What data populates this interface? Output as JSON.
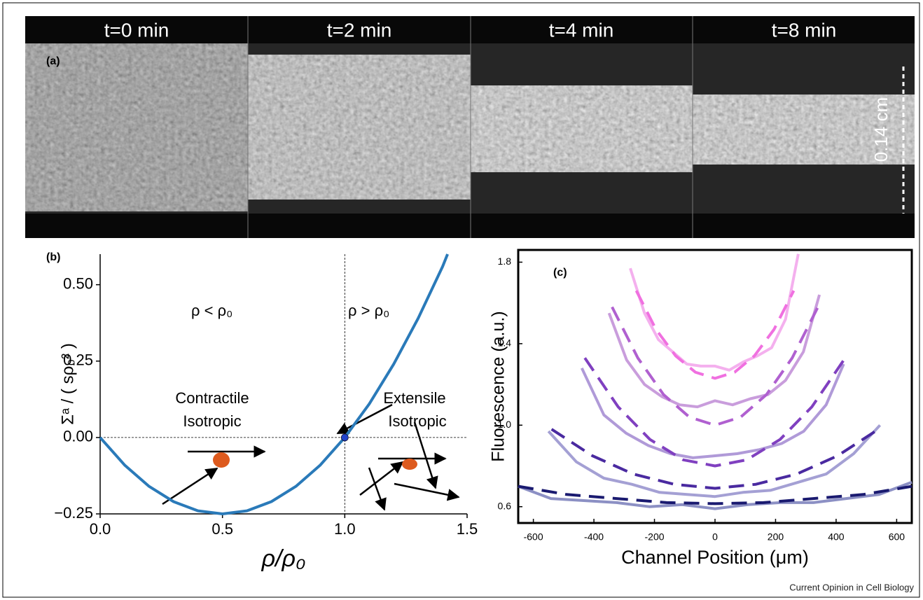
{
  "panel_a": {
    "label": "(a)",
    "frames": [
      "t=0 min",
      "t=2 min",
      "t=4 min",
      "t=8 min"
    ],
    "scale_bar": "0.14 cm"
  },
  "chart_data": [
    {
      "type": "line",
      "label": "(b)",
      "x_label": "ρ/ρ₀",
      "y_label": "Σᵃ / ( sρ₀² )",
      "x": [
        0,
        0.1,
        0.2,
        0.3,
        0.4,
        0.5,
        0.6,
        0.7,
        0.8,
        0.9,
        1.0,
        1.1,
        1.2,
        1.3,
        1.4,
        1.42
      ],
      "series": [
        {
          "color": "#2a7ab9",
          "values": [
            0,
            -0.09,
            -0.16,
            -0.21,
            -0.24,
            -0.25,
            -0.24,
            -0.21,
            -0.16,
            -0.09,
            0,
            0.11,
            0.24,
            0.39,
            0.56,
            0.6
          ]
        }
      ],
      "xlim": [
        0,
        1.5
      ],
      "xticks": [
        {
          "value": 0,
          "label": "0.0"
        },
        0.5,
        {
          "value": 1,
          "label": "1.0"
        },
        1.5
      ],
      "ylim": [
        -0.25,
        0.6
      ],
      "yticks": [
        {
          "value": -0.25,
          "label": "−0.25"
        },
        {
          "value": 0,
          "label": "0.00"
        },
        0.25,
        {
          "value": 0.5,
          "label": "0.50"
        }
      ],
      "reference_lines": {
        "x": 1,
        "y": 0
      },
      "point": {
        "x": 1,
        "y": 0,
        "color": "#2244cc"
      },
      "annotations": [
        "ρ < ρ₀",
        "ρ > ρ₀",
        "Contractile",
        "Isotropic",
        "Extensile",
        "Isotropic"
      ]
    },
    {
      "type": "line",
      "label": "(c)",
      "x_label": "Channel Position (μm)",
      "y_label": "Fluorescence (a.u.)",
      "xlim": [
        -650,
        650
      ],
      "xticks": [
        -600,
        -400,
        -200,
        0,
        200,
        400,
        600
      ],
      "ylim": [
        0.52,
        1.86
      ],
      "yticks": [
        0.6,
        {
          "value": 1,
          "label": "1.0"
        },
        1.4,
        1.8
      ],
      "series": [
        {
          "color": "#8c90c4",
          "dashed": false,
          "x": [
            -650,
            -542,
            -433,
            -325,
            -217,
            -108,
            0,
            108,
            217,
            325,
            433,
            542,
            650
          ],
          "values": [
            0.7,
            0.64,
            0.63,
            0.62,
            0.6,
            0.61,
            0.59,
            0.61,
            0.62,
            0.62,
            0.64,
            0.66,
            0.72
          ]
        },
        {
          "color": "#a4a0d4",
          "dashed": false,
          "x": [
            -550,
            -458,
            -367,
            -275,
            -183,
            -92,
            0,
            92,
            183,
            275,
            367,
            458,
            545
          ],
          "values": [
            0.97,
            0.82,
            0.74,
            0.71,
            0.67,
            0.66,
            0.65,
            0.67,
            0.68,
            0.72,
            0.76,
            0.86,
            1.0
          ]
        },
        {
          "color": "#b09ad8",
          "dashed": false,
          "x": [
            -440,
            -367,
            -293,
            -220,
            -147,
            -73,
            0,
            73,
            147,
            220,
            293,
            367,
            425
          ],
          "values": [
            1.28,
            1.05,
            0.96,
            0.9,
            0.86,
            0.84,
            0.85,
            0.86,
            0.88,
            0.91,
            0.97,
            1.1,
            1.3
          ]
        },
        {
          "color": "#c99ddc",
          "dashed": false,
          "x": [
            -350,
            -292,
            -233,
            -175,
            -117,
            -58,
            0,
            58,
            117,
            175,
            233,
            292,
            345
          ],
          "values": [
            1.55,
            1.32,
            1.2,
            1.14,
            1.1,
            1.09,
            1.12,
            1.1,
            1.13,
            1.15,
            1.22,
            1.36,
            1.64
          ]
        },
        {
          "color": "#f4b0ee",
          "dashed": false,
          "x": [
            -280,
            -233,
            -187,
            -140,
            -93,
            -47,
            0,
            47,
            93,
            140,
            187,
            233,
            275
          ],
          "values": [
            1.77,
            1.55,
            1.42,
            1.36,
            1.3,
            1.29,
            1.29,
            1.27,
            1.31,
            1.34,
            1.38,
            1.52,
            1.84
          ]
        },
        {
          "color": "#1a1a70",
          "dashed": true,
          "x": [
            -650,
            -490,
            -325,
            -160,
            0,
            160,
            325,
            490,
            650
          ],
          "values": [
            0.7,
            0.66,
            0.64,
            0.62,
            0.615,
            0.62,
            0.64,
            0.66,
            0.7
          ]
        },
        {
          "color": "#4a2aa0",
          "dashed": true,
          "x": [
            -540,
            -405,
            -270,
            -135,
            0,
            135,
            270,
            405,
            540
          ],
          "values": [
            0.98,
            0.85,
            0.76,
            0.71,
            0.69,
            0.71,
            0.76,
            0.85,
            0.98
          ]
        },
        {
          "color": "#8040c0",
          "dashed": true,
          "x": [
            -430,
            -320,
            -215,
            -105,
            0,
            105,
            215,
            320,
            430
          ],
          "values": [
            1.33,
            1.09,
            0.93,
            0.83,
            0.8,
            0.83,
            0.93,
            1.09,
            1.33
          ]
        },
        {
          "color": "#b060d0",
          "dashed": true,
          "x": [
            -340,
            -255,
            -170,
            -85,
            0,
            85,
            170,
            255,
            340
          ],
          "values": [
            1.58,
            1.33,
            1.15,
            1.04,
            1.0,
            1.04,
            1.15,
            1.33,
            1.58
          ]
        },
        {
          "color": "#f070e0",
          "dashed": true,
          "x": [
            -260,
            -195,
            -130,
            -65,
            0,
            65,
            130,
            195,
            260
          ],
          "values": [
            1.66,
            1.47,
            1.34,
            1.26,
            1.23,
            1.26,
            1.34,
            1.47,
            1.66
          ]
        }
      ]
    }
  ],
  "credit": "Current Opinion in Cell Biology"
}
